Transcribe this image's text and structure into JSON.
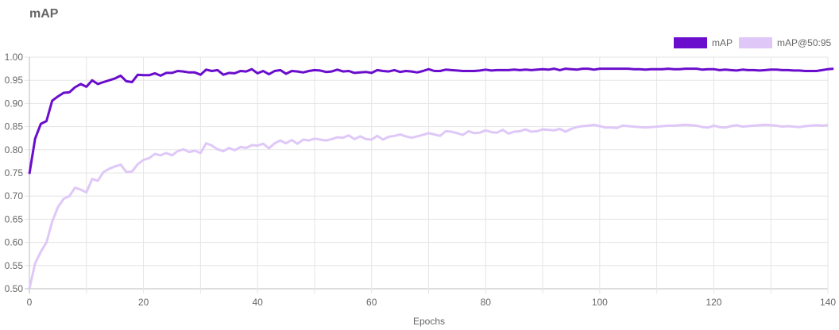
{
  "chart_data": {
    "type": "line",
    "title": "mAP",
    "xlabel": "Epochs",
    "ylabel": "",
    "xlim": [
      0,
      140
    ],
    "ylim": [
      0.5,
      1.0
    ],
    "x_ticks": [
      0,
      20,
      40,
      60,
      80,
      100,
      120,
      140
    ],
    "y_ticks": [
      0.5,
      0.55,
      0.6,
      0.65,
      0.7,
      0.75,
      0.8,
      0.85,
      0.9,
      0.95,
      1.0
    ],
    "grid": true,
    "legend_position": "top-right",
    "series": [
      {
        "name": "mAP",
        "color": "#6a0dcc",
        "values": [
          0.748,
          0.824,
          0.856,
          0.862,
          0.906,
          0.915,
          0.923,
          0.924,
          0.935,
          0.942,
          0.936,
          0.95,
          0.942,
          0.946,
          0.95,
          0.954,
          0.96,
          0.948,
          0.946,
          0.962,
          0.961,
          0.961,
          0.965,
          0.96,
          0.966,
          0.966,
          0.97,
          0.969,
          0.967,
          0.967,
          0.962,
          0.973,
          0.97,
          0.972,
          0.962,
          0.966,
          0.965,
          0.97,
          0.969,
          0.974,
          0.965,
          0.97,
          0.963,
          0.97,
          0.972,
          0.964,
          0.97,
          0.969,
          0.967,
          0.97,
          0.972,
          0.971,
          0.968,
          0.969,
          0.973,
          0.969,
          0.97,
          0.966,
          0.967,
          0.968,
          0.966,
          0.972,
          0.97,
          0.969,
          0.972,
          0.968,
          0.97,
          0.969,
          0.967,
          0.97,
          0.974,
          0.97,
          0.97,
          0.973,
          0.972,
          0.971,
          0.97,
          0.97,
          0.97,
          0.971,
          0.973,
          0.971,
          0.972,
          0.972,
          0.972,
          0.973,
          0.972,
          0.973,
          0.972,
          0.973,
          0.974,
          0.973,
          0.975,
          0.972,
          0.975,
          0.974,
          0.973,
          0.975,
          0.975,
          0.973,
          0.975,
          0.975,
          0.975,
          0.975,
          0.975,
          0.975,
          0.974,
          0.974,
          0.973,
          0.974,
          0.974,
          0.974,
          0.975,
          0.974,
          0.974,
          0.975,
          0.975,
          0.975,
          0.973,
          0.974,
          0.974,
          0.972,
          0.973,
          0.972,
          0.971,
          0.973,
          0.972,
          0.972,
          0.971,
          0.972,
          0.973,
          0.973,
          0.972,
          0.972,
          0.971,
          0.971,
          0.97,
          0.97,
          0.97,
          0.972,
          0.974,
          0.975
        ]
      },
      {
        "name": "mAP@50:95",
        "color": "#dfc8f8",
        "values": [
          0.5,
          0.555,
          0.58,
          0.6,
          0.645,
          0.676,
          0.694,
          0.7,
          0.718,
          0.714,
          0.708,
          0.737,
          0.733,
          0.752,
          0.759,
          0.764,
          0.768,
          0.752,
          0.753,
          0.769,
          0.778,
          0.782,
          0.791,
          0.788,
          0.793,
          0.788,
          0.797,
          0.801,
          0.795,
          0.798,
          0.793,
          0.814,
          0.809,
          0.801,
          0.797,
          0.804,
          0.799,
          0.806,
          0.804,
          0.81,
          0.809,
          0.813,
          0.803,
          0.814,
          0.82,
          0.814,
          0.821,
          0.813,
          0.822,
          0.82,
          0.824,
          0.822,
          0.82,
          0.823,
          0.827,
          0.826,
          0.831,
          0.823,
          0.829,
          0.823,
          0.822,
          0.83,
          0.822,
          0.828,
          0.83,
          0.833,
          0.829,
          0.826,
          0.829,
          0.832,
          0.836,
          0.833,
          0.83,
          0.84,
          0.839,
          0.836,
          0.832,
          0.84,
          0.836,
          0.837,
          0.842,
          0.838,
          0.837,
          0.843,
          0.835,
          0.839,
          0.84,
          0.844,
          0.839,
          0.84,
          0.844,
          0.843,
          0.842,
          0.845,
          0.839,
          0.845,
          0.849,
          0.851,
          0.852,
          0.854,
          0.851,
          0.848,
          0.848,
          0.847,
          0.852,
          0.851,
          0.85,
          0.849,
          0.848,
          0.849,
          0.85,
          0.851,
          0.852,
          0.852,
          0.853,
          0.854,
          0.853,
          0.852,
          0.849,
          0.848,
          0.852,
          0.849,
          0.848,
          0.851,
          0.853,
          0.85,
          0.851,
          0.852,
          0.853,
          0.854,
          0.853,
          0.852,
          0.85,
          0.851,
          0.85,
          0.849,
          0.851,
          0.852,
          0.853,
          0.852,
          0.853
        ]
      }
    ]
  }
}
